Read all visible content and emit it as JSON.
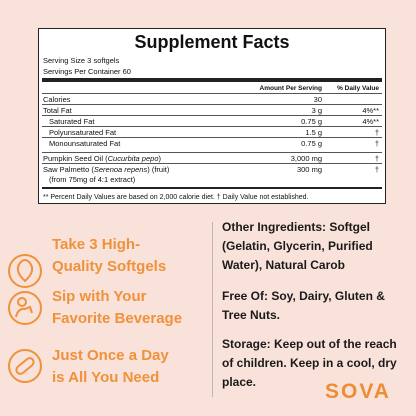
{
  "facts": {
    "title": "Supplement Facts",
    "serving_size": "Serving Size 3 softgels",
    "servings_per_container": "Servings Per Container 60",
    "header": {
      "amount": "Amount Per Serving",
      "dv": "% Daily Value"
    },
    "rows": [
      {
        "name": [
          "Calories"
        ],
        "amount": "30",
        "dv": ""
      },
      {
        "name": [
          "Total Fat"
        ],
        "amount": "3 g",
        "dv": "4%**"
      },
      {
        "name": [
          "Saturated Fat"
        ],
        "amount": "0.75 g",
        "dv": "4%**"
      },
      {
        "name": [
          "Polyunsaturated Fat"
        ],
        "amount": "1.5 g",
        "dv": "†"
      },
      {
        "name": [
          "Monounsaturated Fat"
        ],
        "amount": "0.75 g",
        "dv": "†"
      },
      {
        "name": [
          "Pumpkin Seed Oil (",
          "Cucurbita pepo",
          ")"
        ],
        "amount": "3,000 mg",
        "dv": "†"
      },
      {
        "name": [
          "Saw Palmetto (",
          "Serenoa repens",
          ") (fruit)"
        ],
        "amount": "300 mg",
        "dv": "†"
      },
      {
        "name": [
          "(from 75mg of 4:1 extract)"
        ],
        "amount": "",
        "dv": ""
      }
    ],
    "footnote": "** Percent Daily Values are based on 2,000 calorie diet. † Daily Value not established."
  },
  "benefits": [
    [
      "Take 3 High-",
      "Quality Softgels"
    ],
    [
      "Sip with Your",
      "Favorite Beverage"
    ],
    [
      "Just Once a Day",
      "is All You Need"
    ]
  ],
  "info": [
    "Other Ingredients: Softgel (Gelatin, Glycerin, Purified Water), Natural Carob",
    "Free Of: Soy, Dairy, Gluten & Tree Nuts.",
    "Storage: Keep out of the reach of children. Keep in a cool, dry place."
  ],
  "logo": "SOVA"
}
